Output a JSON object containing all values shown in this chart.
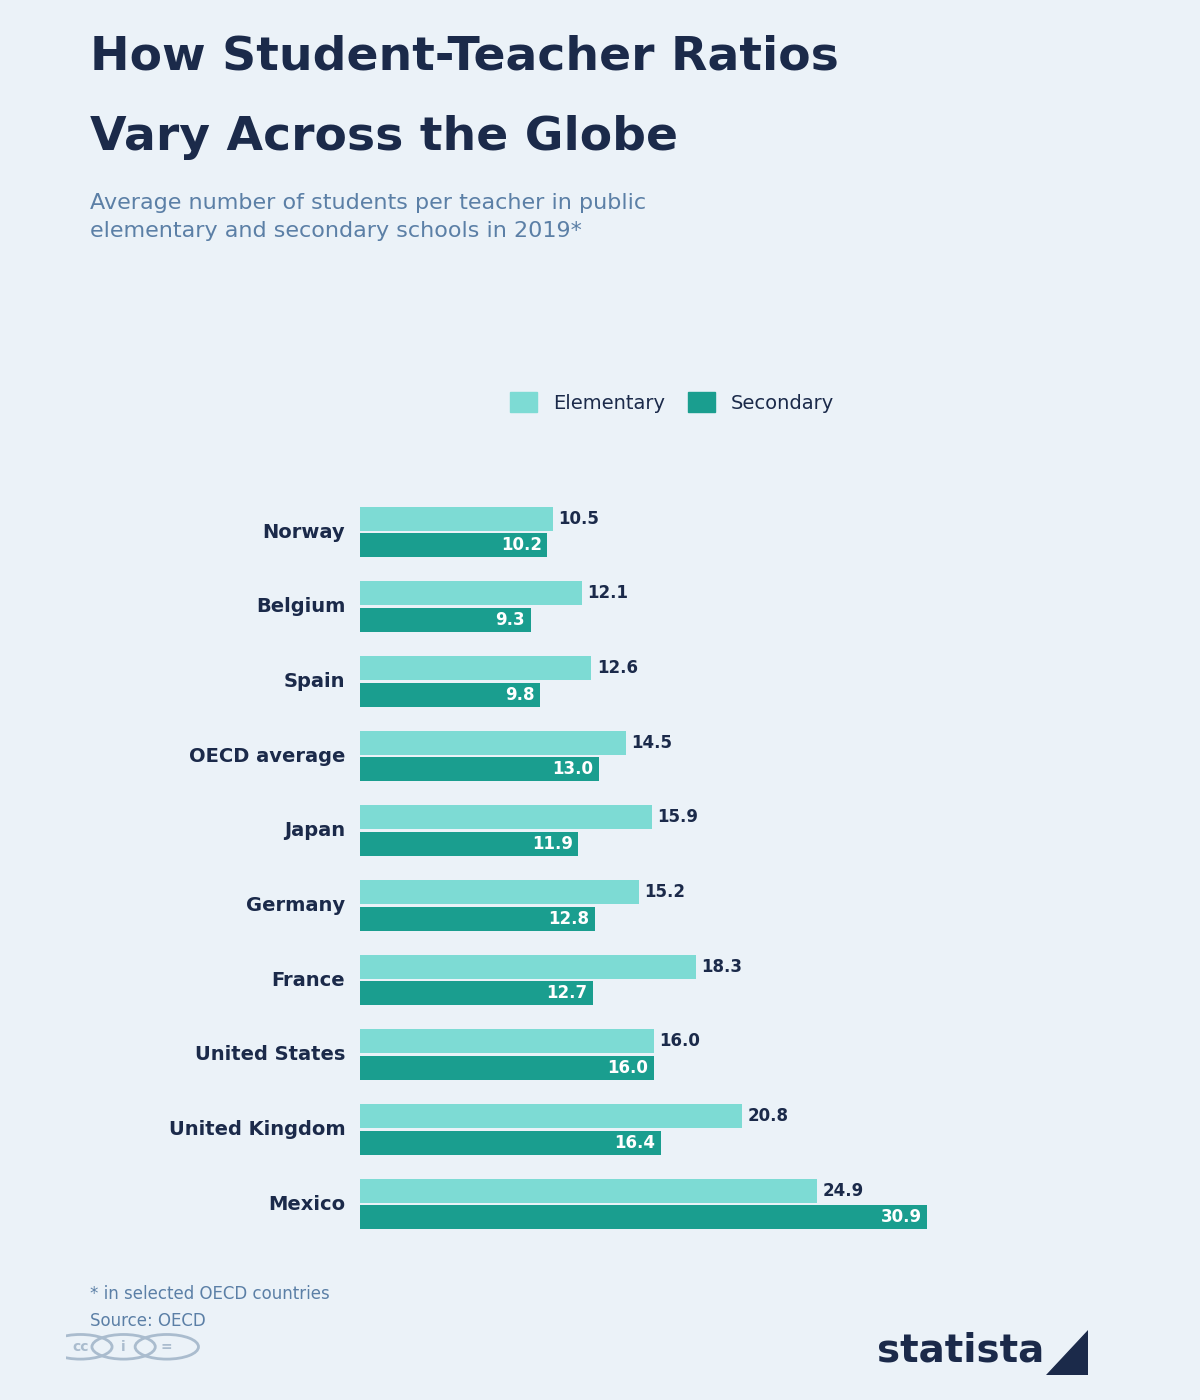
{
  "title_line1": "How Student-Teacher Ratios",
  "title_line2": "Vary Across the Globe",
  "subtitle": "Average number of students per teacher in public\nelementary and secondary schools in 2019*",
  "footnote": "* in selected OECD countries",
  "source": "Source: OECD",
  "countries": [
    "Norway",
    "Belgium",
    "Spain",
    "OECD average",
    "Japan",
    "Germany",
    "France",
    "United States",
    "United Kingdom",
    "Mexico"
  ],
  "elementary": [
    10.5,
    12.1,
    12.6,
    14.5,
    15.9,
    15.2,
    18.3,
    16.0,
    20.8,
    24.9
  ],
  "secondary": [
    10.2,
    9.3,
    9.8,
    13.0,
    11.9,
    12.8,
    12.7,
    16.0,
    16.4,
    30.9
  ],
  "color_elementary": "#7DDBD4",
  "color_secondary": "#1A9E8F",
  "background_color": "#EBF2F8",
  "title_color": "#1B2A4A",
  "subtitle_color": "#5B7FA6",
  "accent_bar_color": "#7DDBD4",
  "label_color_inside": "#FFFFFF",
  "label_color_outside": "#1B2A4A",
  "bar_height": 0.32,
  "bar_gap": 0.04,
  "xlim": [
    0,
    34
  ],
  "legend_labels": [
    "Elementary",
    "Secondary"
  ],
  "title_fontsize": 34,
  "subtitle_fontsize": 16,
  "country_fontsize": 14,
  "value_fontsize": 12
}
